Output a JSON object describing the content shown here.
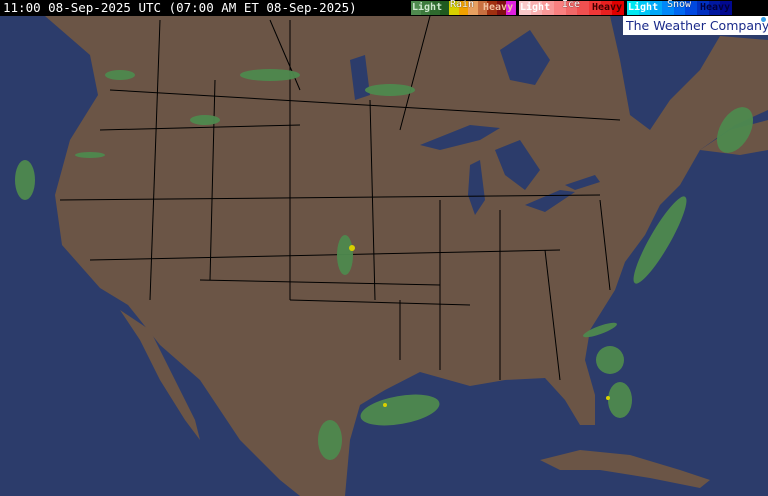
{
  "header": {
    "title": "11:00 08-Sep-2025 UTC  (07:00 AM ET 08-Sep-2025)"
  },
  "legend": {
    "rain": {
      "label": "Rain",
      "light": "Light",
      "heavy": "Heavy",
      "colors": [
        "#4f8a4f",
        "#3d7a3d",
        "#2e6a2e",
        "#1f5a1f",
        "#d8d000",
        "#f0a000",
        "#e8a060",
        "#c87040",
        "#a03010",
        "#801010",
        "#e020e0"
      ]
    },
    "ice": {
      "label": "Ice",
      "light": "Light",
      "heavy": "Heavy",
      "colors": [
        "#f8c8c8",
        "#f8b0b0",
        "#f89898",
        "#f88080",
        "#f06868",
        "#f05050",
        "#f03838",
        "#e82020",
        "#e00000"
      ]
    },
    "snow": {
      "label": "Snow",
      "light": "Light",
      "heavy": "Heavy",
      "colors": [
        "#00e8f0",
        "#00c8f8",
        "#00a8f8",
        "#0088f8",
        "#0068f0",
        "#0048e0",
        "#0030c0",
        "#0018a0",
        "#000890"
      ]
    }
  },
  "logo": {
    "text": "The Weather Company"
  },
  "colors": {
    "ocean": "#2c3c6b",
    "land": "#6b5546",
    "borders": "#000000",
    "radar_light_rain": "#4f8a4f"
  }
}
